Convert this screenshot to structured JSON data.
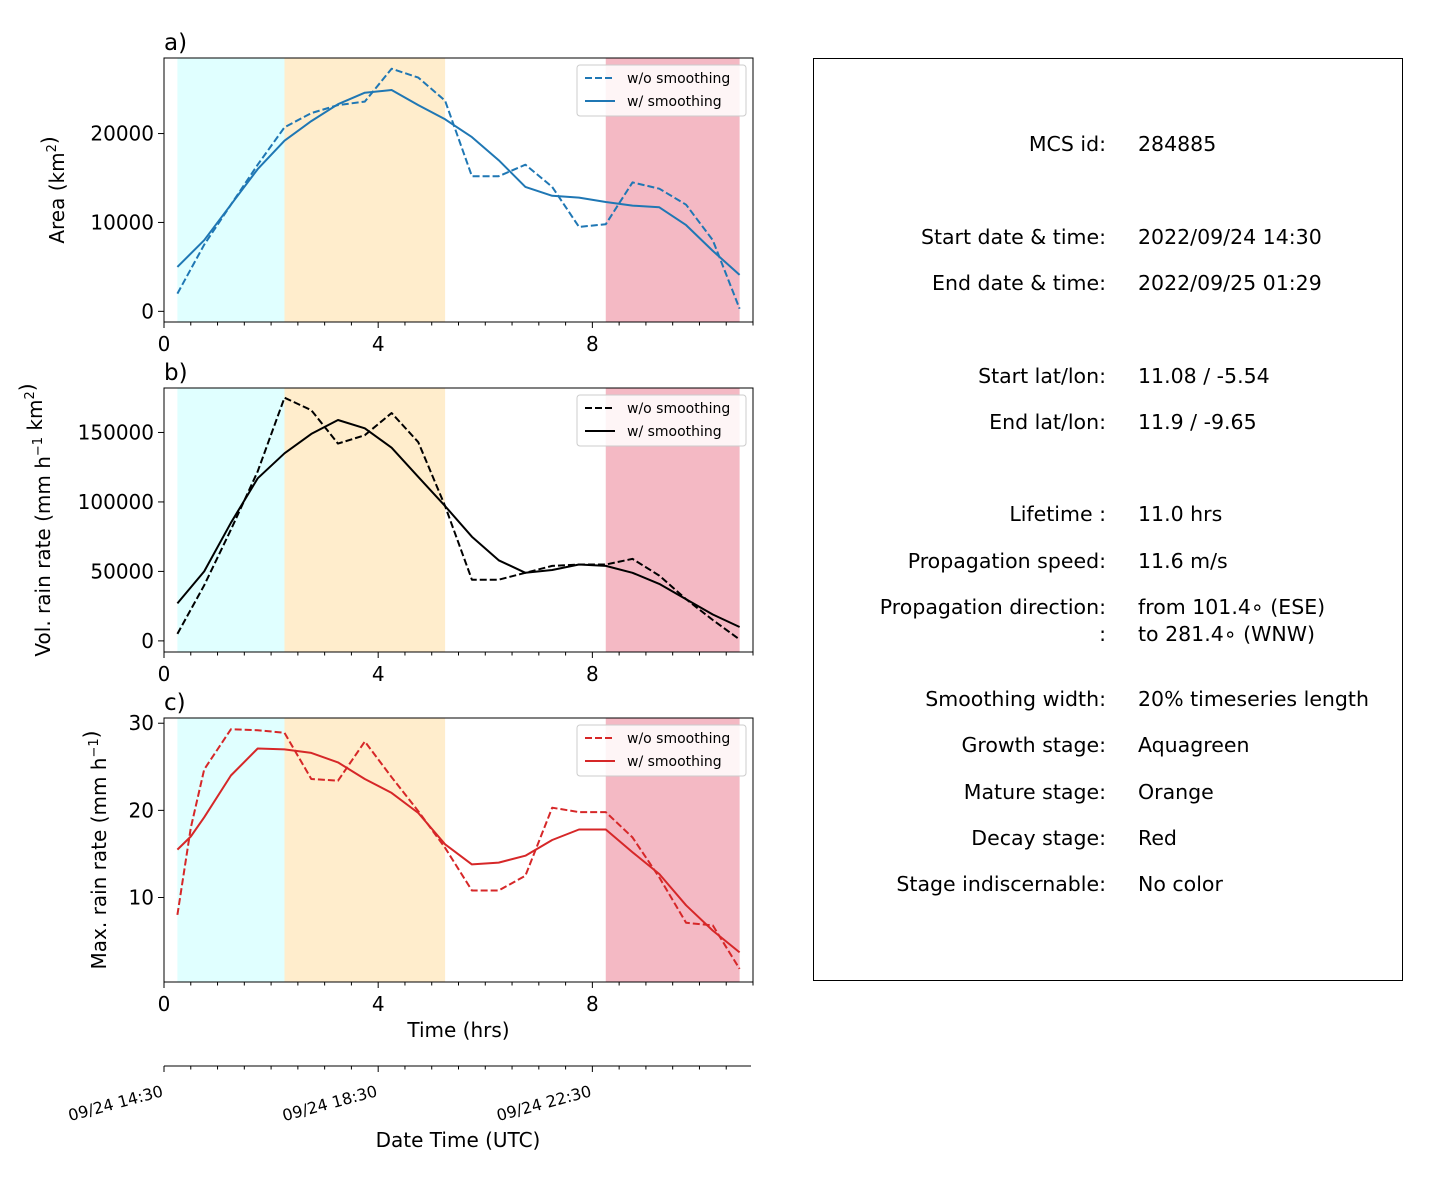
{
  "panels": [
    {
      "id": "a",
      "letter": "a)",
      "ylabel_text": "Area  (km",
      "ylabel_sup": "2",
      "ylabel_tail": ")",
      "yticks": [
        0,
        10000,
        20000
      ],
      "ylim": [
        -1200,
        28500
      ],
      "color": "#1f77b4",
      "legend": [
        "w/o smoothing",
        "w/ smoothing"
      ]
    },
    {
      "id": "b",
      "letter": "b)",
      "ylabel_text": "Vol. rain rate (mm h",
      "ylabel_sup": "−1",
      "ylabel_mid": " km",
      "ylabel_sup2": "2",
      "ylabel_tail": ")",
      "yticks": [
        0,
        50000,
        100000,
        150000
      ],
      "ylim": [
        -8000,
        182000
      ],
      "color": "#000000",
      "legend": [
        "w/o smoothing",
        "w/ smoothing"
      ]
    },
    {
      "id": "c",
      "letter": "c)",
      "ylabel_text": "Max. rain rate  (mm h",
      "ylabel_sup": "−1",
      "ylabel_tail": ")",
      "yticks": [
        10,
        20,
        30
      ],
      "ylim": [
        0.3,
        30.6
      ],
      "color": "#d62728",
      "legend": [
        "w/o smoothing",
        "w/ smoothing"
      ]
    }
  ],
  "x_axis": {
    "xlim": [
      0,
      11
    ],
    "ticks": [
      "0",
      "4",
      "8"
    ],
    "label": "Time (hrs)"
  },
  "date_axis": {
    "ticks": [
      "09/24 14:30",
      "09/24 18:30",
      "09/24 22:30"
    ],
    "label": "Date Time (UTC)"
  },
  "stage_colors": {
    "growth": "#e0ffff",
    "mature": "#ffedcc",
    "decay": "#f4b9c4"
  },
  "chart_data": [
    {
      "type": "line",
      "panel": "a)",
      "ylabel": "Area (km2)",
      "xlabel": "Time (hrs)",
      "xlim": [
        0,
        11
      ],
      "ylim": [
        -1200,
        28500
      ],
      "legend_position": "top-right",
      "stage_spans": [
        {
          "stage": "growth",
          "start": 0.25,
          "end": 2.25
        },
        {
          "stage": "mature",
          "start": 2.25,
          "end": 5.25
        },
        {
          "stage": "decay",
          "start": 8.25,
          "end": 10.75
        }
      ],
      "x": [
        0.25,
        0.75,
        1.25,
        1.75,
        2.25,
        2.75,
        3.25,
        3.75,
        4.25,
        4.75,
        5.25,
        5.75,
        6.25,
        6.75,
        7.25,
        7.75,
        8.25,
        8.75,
        9.25,
        9.75,
        10.25,
        10.75
      ],
      "series": [
        {
          "name": "w/o smoothing",
          "style": "dashed",
          "values": [
            2000,
            7500,
            12000,
            16500,
            20700,
            22300,
            23200,
            23600,
            27300,
            26300,
            23700,
            15200,
            15200,
            16500,
            14000,
            9500,
            9800,
            14500,
            13800,
            12000,
            8000,
            300
          ]
        },
        {
          "name": "w/ smoothing",
          "style": "solid",
          "values": [
            5000,
            8000,
            12000,
            16000,
            19200,
            21400,
            23300,
            24600,
            24900,
            23200,
            21600,
            19600,
            17000,
            14000,
            13000,
            12800,
            12300,
            11900,
            11700,
            9700,
            6800,
            4100
          ]
        }
      ]
    },
    {
      "type": "line",
      "panel": "b)",
      "ylabel": "Vol. rain rate (mm h-1 km2)",
      "xlabel": "Time (hrs)",
      "xlim": [
        0,
        11
      ],
      "ylim": [
        -8000,
        182000
      ],
      "legend_position": "top-right",
      "stage_spans": [
        {
          "stage": "growth",
          "start": 0.25,
          "end": 2.25
        },
        {
          "stage": "mature",
          "start": 2.25,
          "end": 5.25
        },
        {
          "stage": "decay",
          "start": 8.25,
          "end": 10.75
        }
      ],
      "x": [
        0.25,
        0.75,
        1.25,
        1.75,
        2.25,
        2.75,
        3.25,
        3.75,
        4.25,
        4.75,
        5.25,
        5.75,
        6.25,
        6.75,
        7.25,
        7.75,
        8.25,
        8.75,
        9.25,
        9.75,
        10.25,
        10.75
      ],
      "series": [
        {
          "name": "w/o smoothing",
          "style": "dashed",
          "values": [
            5000,
            40000,
            80000,
            122000,
            175000,
            166000,
            142000,
            148000,
            164000,
            143000,
            97000,
            44000,
            44000,
            49000,
            54000,
            55000,
            55000,
            59000,
            47000,
            30000,
            15000,
            1000
          ]
        },
        {
          "name": "w/ smoothing",
          "style": "solid",
          "values": [
            27000,
            50000,
            85000,
            117000,
            135000,
            149000,
            159000,
            153000,
            139000,
            118000,
            97000,
            75000,
            58000,
            49000,
            51000,
            55000,
            54000,
            49000,
            41000,
            30000,
            19000,
            10000
          ]
        }
      ]
    },
    {
      "type": "line",
      "panel": "c)",
      "ylabel": "Max. rain rate (mm h-1)",
      "xlabel": "Time (hrs)",
      "xlim": [
        0,
        11
      ],
      "ylim": [
        0.3,
        30.6
      ],
      "legend_position": "top-right",
      "stage_spans": [
        {
          "stage": "growth",
          "start": 0.25,
          "end": 2.25
        },
        {
          "stage": "mature",
          "start": 2.25,
          "end": 5.25
        },
        {
          "stage": "decay",
          "start": 8.25,
          "end": 10.75
        }
      ],
      "x": [
        0.25,
        0.5,
        0.75,
        1.25,
        1.75,
        2.25,
        2.75,
        3.25,
        3.75,
        4.25,
        4.75,
        5.25,
        5.75,
        6.25,
        6.75,
        7.25,
        7.75,
        8.25,
        8.75,
        9.25,
        9.75,
        10.25,
        10.75
      ],
      "series": [
        {
          "name": "w/o smoothing",
          "style": "dashed",
          "values": [
            8,
            18,
            24.7,
            29.3,
            29.2,
            28.9,
            23.6,
            23.4,
            27.9,
            23.8,
            19.9,
            15.7,
            10.8,
            10.8,
            12.5,
            20.3,
            19.8,
            19.8,
            16.9,
            12.3,
            7.1,
            6.8,
            1.8
          ]
        },
        {
          "name": "w/ smoothing",
          "style": "solid",
          "values": [
            15.5,
            17,
            19.2,
            24,
            27.1,
            27,
            26.6,
            25.5,
            23.6,
            22,
            19.7,
            16.1,
            13.8,
            14,
            14.8,
            16.6,
            17.8,
            17.8,
            15.2,
            12.7,
            9.1,
            6.2,
            3.7
          ]
        }
      ]
    }
  ],
  "info": [
    {
      "label": "MCS id:",
      "value": "284885"
    },
    {
      "label": "Start date & time:",
      "value": "2022/09/24 14:30"
    },
    {
      "label": "End date & time:",
      "value": "2022/09/25 01:29"
    },
    {
      "label": "Start lat/lon:",
      "value": "11.08 / -5.54"
    },
    {
      "label": "End lat/lon:",
      "value": "11.9 / -9.65"
    },
    {
      "label": "Lifetime :",
      "value": "11.0 hrs"
    },
    {
      "label": "Propagation speed:",
      "value": "11.6 m/s"
    },
    {
      "label": "Propagation direction:",
      "value": "from 101.4∘ (ESE)"
    },
    {
      "label": ":",
      "value": "to   281.4∘ (WNW)"
    },
    {
      "label": "Smoothing width:",
      "value": "20% timeseries length"
    },
    {
      "label": "Growth stage:",
      "value": "Aquagreen"
    },
    {
      "label": "Mature stage:",
      "value": "Orange"
    },
    {
      "label": "Decay stage:",
      "value": "Red"
    },
    {
      "label": "Stage indiscernable:",
      "value": "No color"
    }
  ]
}
